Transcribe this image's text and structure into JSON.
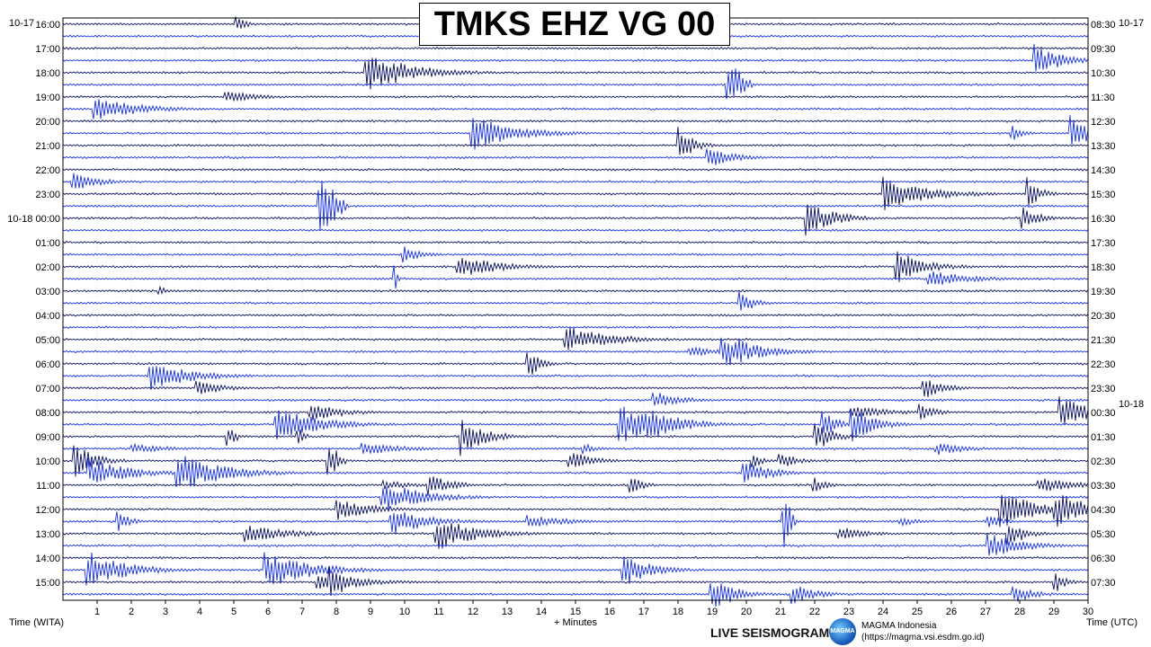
{
  "title": "TMKS EHZ VG 00",
  "left_date_top": "10-17",
  "right_date_top": "10-17",
  "right_date_mid": "10-18",
  "footer": {
    "left_axis": "Time (WITA)",
    "center_axis": "+ Minutes",
    "right_axis": "Time (UTC)",
    "live_label": "LIVE SEISMOGRAM",
    "logo_text": "MAGMA",
    "org_name": "MAGMA Indonesia",
    "org_url": "(https://magma.vsi.esdm.go.id)"
  },
  "colors": {
    "trace_dark": "#0a1060",
    "trace_blue": "#1630e8",
    "background": "#ffffff"
  },
  "chart_data": {
    "type": "line",
    "x_ticks": [
      "1",
      "2",
      "3",
      "4",
      "5",
      "6",
      "7",
      "8",
      "9",
      "10",
      "11",
      "12",
      "13",
      "14",
      "15",
      "16",
      "17",
      "18",
      "19",
      "20",
      "21",
      "22",
      "23",
      "24",
      "25",
      "26",
      "27",
      "28",
      "29",
      "30"
    ],
    "xlim": [
      0,
      30
    ],
    "traces_per_hour": 2,
    "left_hour_labels": [
      "16:00",
      "17:00",
      "18:00",
      "19:00",
      "20:00",
      "21:00",
      "22:00",
      "23:00",
      "10-18 00:00",
      "01:00",
      "02:00",
      "03:00",
      "04:00",
      "05:00",
      "06:00",
      "07:00",
      "08:00",
      "09:00",
      "10:00",
      "11:00",
      "12:00",
      "13:00",
      "14:00",
      "15:00"
    ],
    "right_hour_labels": [
      "08:30",
      "09:30",
      "10:30",
      "11:30",
      "12:30",
      "13:30",
      "14:30",
      "15:30",
      "16:30",
      "17:30",
      "18:30",
      "19:30",
      "20:30",
      "21:30",
      "22:30",
      "23:30",
      "00:30",
      "01:30",
      "02:30",
      "03:30",
      "04:30",
      "05:30",
      "06:30",
      "07:30"
    ],
    "grid": true
  }
}
